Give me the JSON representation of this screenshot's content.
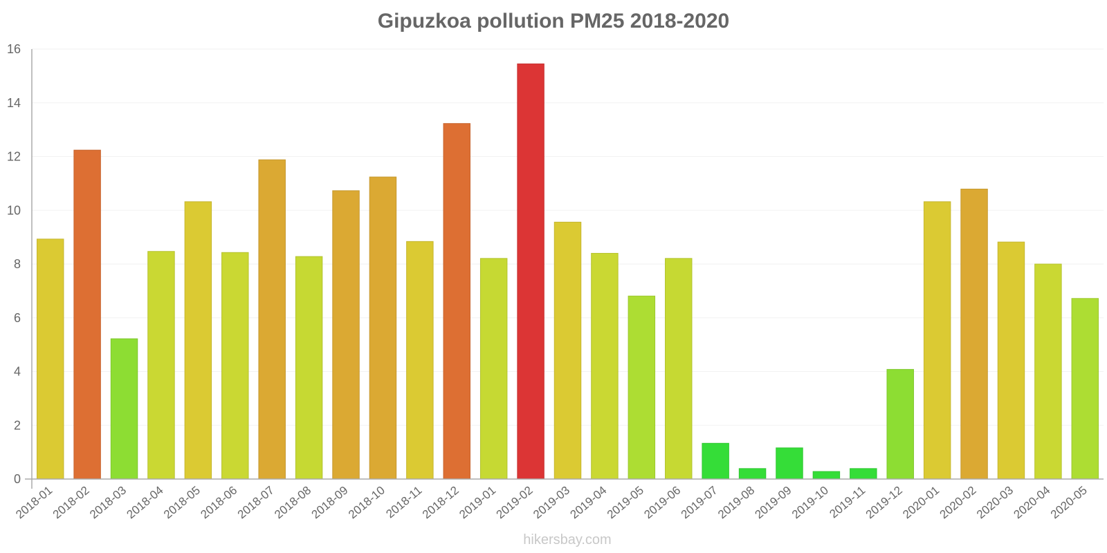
{
  "chart": {
    "title": "Gipuzkoa pollution PM25 2018-2020",
    "watermark": "hikersbay.com"
  },
  "chart_data": {
    "type": "bar",
    "title": "Gipuzkoa pollution PM25 2018-2020",
    "xlabel": "",
    "ylabel": "",
    "ylim": [
      0,
      16
    ],
    "yticks": [
      0,
      2,
      4,
      6,
      8,
      10,
      12,
      14,
      16
    ],
    "grid": true,
    "legend": null,
    "categories": [
      "2018-01",
      "2018-02",
      "2018-03",
      "2018-04",
      "2018-05",
      "2018-06",
      "2018-07",
      "2018-08",
      "2018-09",
      "2018-10",
      "2018-11",
      "2018-12",
      "2019-01",
      "2019-02",
      "2019-03",
      "2019-04",
      "2019-05",
      "2019-06",
      "2019-07",
      "2019-08",
      "2019-09",
      "2019-10",
      "2019-11",
      "2019-12",
      "2020-01",
      "2020-02",
      "2020-03",
      "2020-04",
      "2020-05"
    ],
    "values": [
      8.93,
      12.24,
      5.22,
      8.47,
      10.32,
      8.43,
      11.88,
      8.28,
      10.73,
      11.24,
      8.84,
      13.23,
      8.21,
      15.45,
      9.56,
      8.4,
      6.81,
      8.21,
      1.33,
      0.39,
      1.16,
      0.28,
      0.39,
      4.08,
      10.32,
      10.79,
      8.82,
      8.0,
      6.72
    ],
    "colors": [
      "#dbca33",
      "#dd6f33",
      "#8ddd33",
      "#cad833",
      "#dbca33",
      "#cad833",
      "#dba933",
      "#c6d933",
      "#dba933",
      "#dba933",
      "#dbca33",
      "#dd6f33",
      "#c6d933",
      "#dc3535",
      "#dbca33",
      "#cad833",
      "#addd33",
      "#c6d933",
      "#35dd38",
      "#35dd38",
      "#35dd38",
      "#35dd38",
      "#35dd38",
      "#8ddd33",
      "#dbca33",
      "#dba933",
      "#dbca33",
      "#cad833",
      "#addd33"
    ],
    "watermark": "hikersbay.com"
  }
}
